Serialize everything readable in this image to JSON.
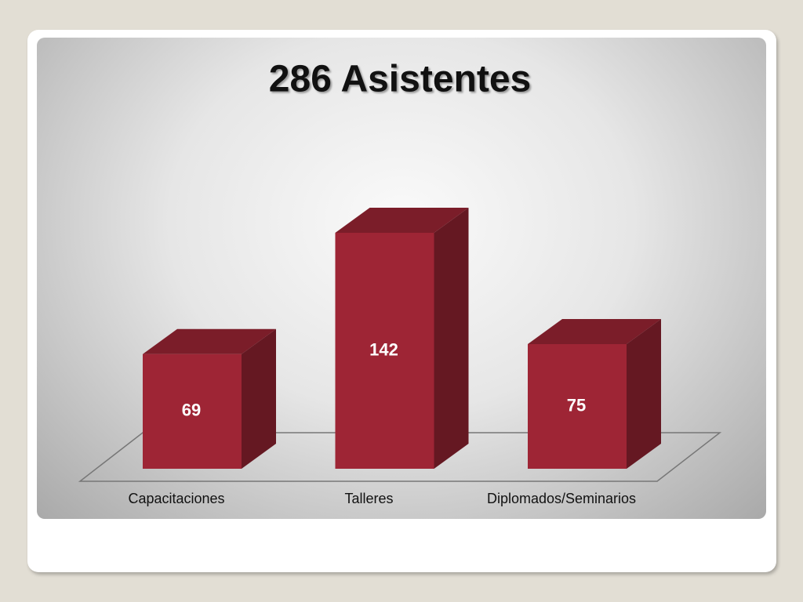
{
  "chart_data": {
    "type": "bar",
    "title": "286 Asistentes",
    "categories": [
      "Capacitaciones",
      "Talleres",
      "Diplomados/Seminarios"
    ],
    "values": [
      69,
      142,
      75
    ],
    "color": "#9e2535"
  }
}
